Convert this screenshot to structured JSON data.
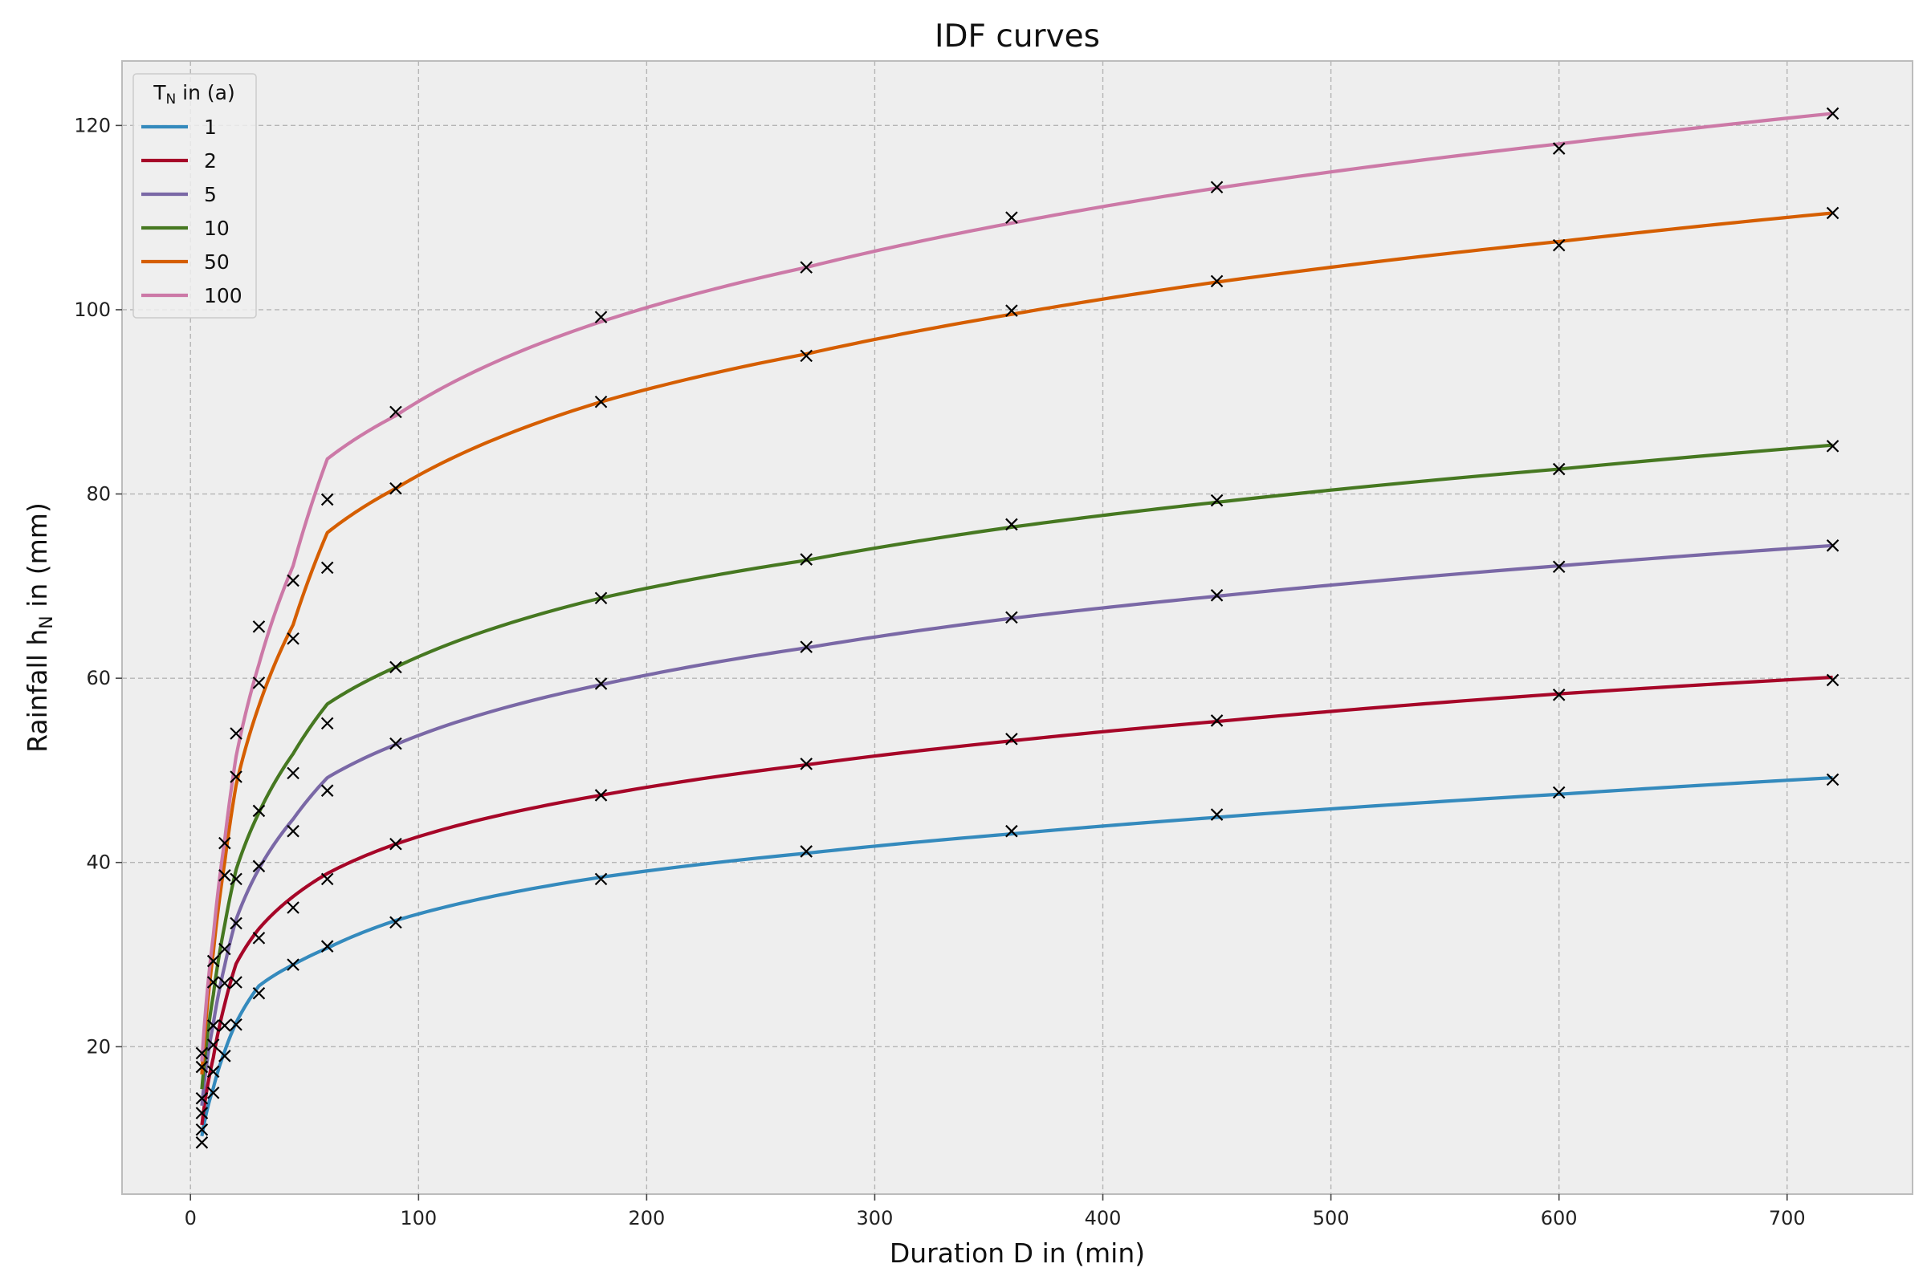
{
  "chart_data": {
    "type": "line",
    "title": "IDF curves",
    "xlabel": "Duration D in (min)",
    "ylabel_main": "Rainfall h",
    "ylabel_sub": "N",
    "ylabel_tail": " in (mm)",
    "legend_title_main": "T",
    "legend_title_sub": "N",
    "legend_title_tail": " in (a)",
    "legend_position": "top-left",
    "grid": true,
    "xlim": [
      -30,
      755
    ],
    "ylim": [
      4,
      127
    ],
    "xticks": [
      0,
      100,
      200,
      300,
      400,
      500,
      600,
      700
    ],
    "yticks": [
      20,
      40,
      60,
      80,
      100,
      120
    ],
    "durations": [
      5,
      10,
      15,
      20,
      30,
      45,
      60,
      90,
      180,
      270,
      360,
      450,
      600,
      720
    ],
    "series": [
      {
        "name": "1",
        "color": "#348abd",
        "fit": [
          10.3,
          15.5,
          19.5,
          22.6,
          26.6,
          28.9,
          30.7,
          33.7,
          38.4,
          41.0,
          43.1,
          44.9,
          47.4,
          49.2
        ],
        "observed": [
          9.6,
          15.0,
          19.0,
          22.4,
          25.8,
          28.9,
          30.9,
          33.5,
          38.2,
          41.2,
          43.4,
          45.2,
          47.6,
          49.0
        ]
      },
      {
        "name": "2",
        "color": "#a60628",
        "fit": [
          11.5,
          18.8,
          24.6,
          29.0,
          32.8,
          36.3,
          38.8,
          42.0,
          47.3,
          50.6,
          53.2,
          55.3,
          58.3,
          60.1
        ],
        "observed": [
          11.0,
          17.3,
          22.3,
          27.0,
          31.8,
          35.1,
          38.2,
          42.0,
          47.3,
          50.7,
          53.4,
          55.4,
          58.2,
          59.8
        ]
      },
      {
        "name": "5",
        "color": "#7a68a6",
        "fit": [
          13.6,
          22.5,
          28.8,
          33.8,
          39.3,
          44.7,
          49.2,
          52.8,
          59.3,
          63.3,
          66.5,
          68.9,
          72.2,
          74.4
        ],
        "observed": [
          12.8,
          20.2,
          26.9,
          33.4,
          39.6,
          43.4,
          47.8,
          52.9,
          59.4,
          63.4,
          66.6,
          69.0,
          72.1,
          74.4
        ]
      },
      {
        "name": "10",
        "color": "#467821",
        "fit": [
          15.4,
          25.6,
          33.2,
          39.2,
          45.4,
          51.8,
          57.2,
          61.2,
          68.7,
          72.8,
          76.4,
          79.1,
          82.7,
          85.3
        ],
        "observed": [
          14.4,
          22.3,
          30.6,
          38.2,
          45.6,
          49.7,
          55.1,
          61.2,
          68.7,
          72.9,
          76.7,
          79.3,
          82.7,
          85.2
        ]
      },
      {
        "name": "50",
        "color": "#d55e00",
        "fit": [
          17.0,
          30.2,
          40.0,
          48.4,
          57.0,
          65.8,
          75.8,
          80.6,
          90.0,
          95.2,
          99.5,
          103.0,
          107.4,
          110.5
        ],
        "observed": [
          17.8,
          27.0,
          38.6,
          49.3,
          59.5,
          64.3,
          72.0,
          80.6,
          90.0,
          95.0,
          99.9,
          103.1,
          107.0,
          110.5
        ]
      },
      {
        "name": "100",
        "color": "#cc79a7",
        "fit": [
          18.4,
          32.0,
          42.4,
          51.5,
          61.5,
          72.2,
          83.8,
          88.5,
          98.7,
          104.6,
          109.4,
          113.2,
          118.0,
          121.3
        ],
        "observed": [
          19.3,
          29.3,
          42.1,
          54.0,
          65.6,
          70.6,
          79.4,
          88.9,
          99.2,
          104.6,
          110.0,
          113.3,
          117.5,
          121.3
        ]
      }
    ]
  }
}
